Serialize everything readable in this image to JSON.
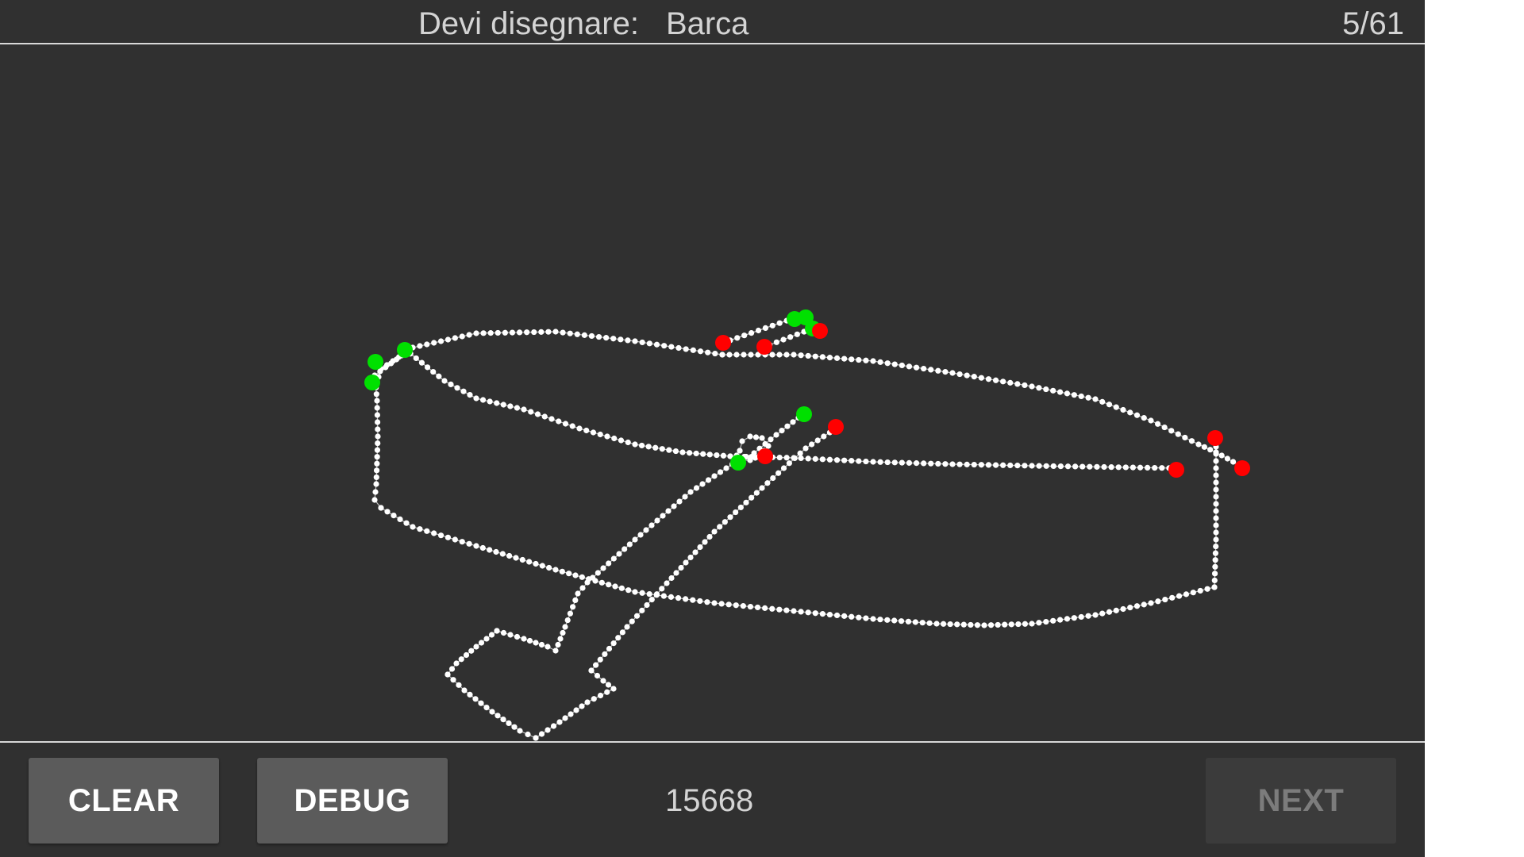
{
  "header": {
    "prompt_label": "Devi disegnare:",
    "prompt_word": "Barca",
    "progress": "5/61"
  },
  "footer": {
    "clear_label": "CLEAR",
    "debug_label": "DEBUG",
    "score": "15668",
    "next_label": "NEXT",
    "next_enabled": false
  },
  "colors": {
    "background": "#303030",
    "stroke_point": "#ffffff",
    "stroke_start": "#00e000",
    "stroke_end": "#ff0000",
    "button": "#5b5b5b",
    "button_disabled": "#3b3b3b"
  }
}
